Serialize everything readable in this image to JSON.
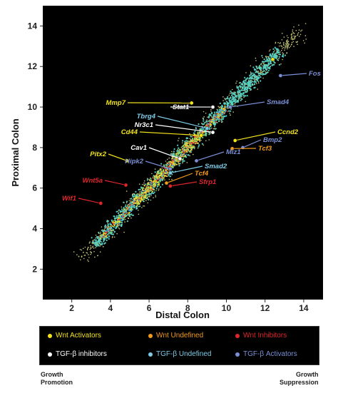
{
  "chart_data": {
    "type": "scatter",
    "xlabel": "Distal Colon",
    "ylabel": "Proximal Colon",
    "xlim": [
      0.5,
      15
    ],
    "ylim": [
      0.5,
      15
    ],
    "xticks": [
      2,
      4,
      6,
      8,
      10,
      12,
      14
    ],
    "yticks": [
      2,
      4,
      6,
      8,
      10,
      12,
      14
    ],
    "background": "#000000",
    "annotations": [
      {
        "label": "Fos",
        "group": "tgfb_activators",
        "x": 12.8,
        "y": 11.55
      },
      {
        "label": "Mmp7",
        "group": "wnt_activators",
        "x": 8.2,
        "y": 10.2
      },
      {
        "label": "Stat1",
        "group": "tgfb_inhibitors",
        "x": 9.3,
        "y": 10.0
      },
      {
        "label": "Smad4",
        "group": "tgfb_activators",
        "x": 10.2,
        "y": 10.0
      },
      {
        "label": "Tbrg4",
        "group": "tgfb_undefined",
        "x": 9.0,
        "y": 8.95
      },
      {
        "label": "Nr3c1",
        "group": "tgfb_inhibitors",
        "x": 9.3,
        "y": 8.75
      },
      {
        "label": "Cd44",
        "group": "wnt_activators",
        "x": 8.7,
        "y": 8.6
      },
      {
        "label": "Ccnd2",
        "group": "wnt_activators",
        "x": 10.45,
        "y": 8.35
      },
      {
        "label": "Bmp2",
        "group": "tgfb_activators",
        "x": 10.85,
        "y": 8.0
      },
      {
        "label": "Tcf3",
        "group": "wnt_undefined",
        "x": 10.3,
        "y": 7.95
      },
      {
        "label": "Cav1",
        "group": "tgfb_inhibitors",
        "x": 7.6,
        "y": 7.45
      },
      {
        "label": "Pitx2",
        "group": "wnt_activators",
        "x": 4.85,
        "y": 7.35
      },
      {
        "label": "Miz1",
        "group": "tgfb_activators",
        "x": 8.45,
        "y": 7.35
      },
      {
        "label": "Hipk2",
        "group": "tgfb_activators",
        "x": 7.1,
        "y": 6.95
      },
      {
        "label": "Smad2",
        "group": "tgfb_undefined",
        "x": 7.1,
        "y": 6.75
      },
      {
        "label": "Tcf4",
        "group": "wnt_undefined",
        "x": 6.9,
        "y": 6.25
      },
      {
        "label": "Wnt5a",
        "group": "wnt_inhibitors",
        "x": 4.8,
        "y": 6.15
      },
      {
        "label": "Sfrp1",
        "group": "wnt_inhibitors",
        "x": 7.1,
        "y": 6.1
      },
      {
        "label": "Wif1",
        "group": "wnt_inhibitors",
        "x": 3.5,
        "y": 5.25
      },
      {
        "label": "",
        "group": "wnt_activators",
        "x": 12.4,
        "y": 12.35
      }
    ]
  },
  "legend": {
    "items": [
      {
        "key": "wnt_activators",
        "label": "Wnt Activators",
        "color": "#f2e31a"
      },
      {
        "key": "wnt_undefined",
        "label": "Wnt Undefined",
        "color": "#f29a1a"
      },
      {
        "key": "wnt_inhibitors",
        "label": "Wnt Inhibitors",
        "color": "#e0262b"
      },
      {
        "key": "tgfb_inhibitors",
        "label": "TGF-β inhibitors",
        "color": "#ffffff"
      },
      {
        "key": "tgfb_undefined",
        "label": "TGF-β Undefined",
        "color": "#7ecbe8"
      },
      {
        "key": "tgfb_activators",
        "label": "TGF-β Activators",
        "color": "#7a8fd6"
      }
    ]
  },
  "footer": {
    "left_line1": "Growth",
    "left_line2": "Promotion",
    "right_line1": "Growth",
    "right_line2": "Suppression"
  }
}
